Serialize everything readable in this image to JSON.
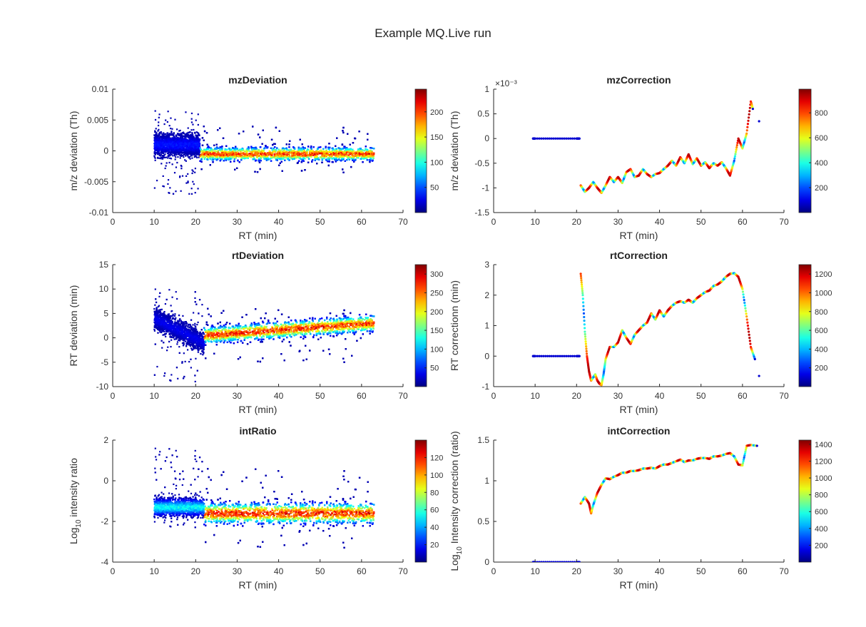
{
  "figure": {
    "title": "Example MQ.Live run"
  },
  "chart_data": [
    {
      "id": "mz-deviation",
      "type": "heatmap",
      "title": "mzDeviation",
      "xlabel": "RT (min)",
      "ylabel": "m/z deviation (Th)",
      "xlim": [
        0,
        70
      ],
      "ylim": [
        -0.01,
        0.01
      ],
      "xticks": [
        "0",
        "10",
        "20",
        "30",
        "40",
        "50",
        "60",
        "70"
      ],
      "yticks": [
        "-0.01",
        "-0.005",
        "0",
        "0.005",
        "0.01"
      ],
      "exponent_label": "",
      "colorbar": {
        "min": 0,
        "max": 245,
        "ticks": [
          50,
          100,
          150,
          200
        ],
        "tick_labels": [
          "50",
          "100",
          "150",
          "200"
        ]
      },
      "colormap": "jet",
      "density": [
        {
          "x": [
            10,
            21
          ],
          "center": 0.001,
          "spread": 0.004,
          "outlier_max": 0.0065,
          "outlier_min": -0.007,
          "peak": 40
        },
        {
          "x": [
            21,
            63
          ],
          "center": -0.0005,
          "spread": 0.0025,
          "outlier_max": 0.004,
          "outlier_min": -0.0035,
          "peak": 230
        }
      ]
    },
    {
      "id": "mz-correction",
      "type": "scatter",
      "title": "mzCorrection",
      "xlabel": "RT (min)",
      "ylabel": "m/z deviation (Th)",
      "xlim": [
        0,
        70
      ],
      "ylim": [
        -1.5,
        1
      ],
      "xticks": [
        "0",
        "10",
        "20",
        "30",
        "40",
        "50",
        "60",
        "70"
      ],
      "yticks": [
        "-1.5",
        "-1",
        "-0.5",
        "0",
        "0.5",
        "1"
      ],
      "exponent_label": "×10⁻³",
      "colorbar": {
        "min": 0,
        "max": 990,
        "ticks": [
          200,
          400,
          600,
          800
        ],
        "tick_labels": [
          "200",
          "400",
          "600",
          "800"
        ]
      },
      "colormap": "jet",
      "segments": [
        {
          "x": [
            9.5,
            10,
            15,
            20,
            20.7
          ],
          "y": [
            0,
            0,
            0,
            0,
            0
          ],
          "color_level": 0.1
        },
        {
          "x": [
            21,
            22,
            23,
            24,
            25,
            26,
            27,
            28,
            29,
            30,
            31,
            32,
            33,
            34,
            35,
            36,
            37,
            38,
            39,
            40,
            41,
            42,
            43,
            44,
            45,
            46,
            47,
            48,
            49,
            50,
            51,
            52,
            53,
            54,
            55,
            56,
            57,
            58,
            59,
            60,
            61,
            62,
            62.5
          ],
          "y": [
            -0.95,
            -1.08,
            -1.0,
            -0.88,
            -1.0,
            -1.1,
            -0.95,
            -0.78,
            -0.88,
            -0.78,
            -0.9,
            -0.68,
            -0.62,
            -0.78,
            -0.75,
            -0.62,
            -0.72,
            -0.78,
            -0.72,
            -0.7,
            -0.62,
            -0.55,
            -0.45,
            -0.55,
            -0.38,
            -0.5,
            -0.32,
            -0.52,
            -0.4,
            -0.55,
            -0.48,
            -0.6,
            -0.5,
            -0.55,
            -0.48,
            -0.6,
            -0.75,
            -0.45,
            0.0,
            -0.2,
            0.1,
            0.75,
            0.6
          ],
          "color_level": 0.5
        },
        {
          "x": [
            64
          ],
          "y": [
            0.35
          ],
          "color_level": 0.1
        }
      ]
    },
    {
      "id": "rt-deviation",
      "type": "heatmap",
      "title": "rtDeviation",
      "xlabel": "RT (min)",
      "ylabel": "RT deviation (min)",
      "xlim": [
        0,
        70
      ],
      "ylim": [
        -10,
        15
      ],
      "xticks": [
        "0",
        "10",
        "20",
        "30",
        "40",
        "50",
        "60",
        "70"
      ],
      "yticks": [
        "-10",
        "-5",
        "0",
        "5",
        "10",
        "15"
      ],
      "exponent_label": "",
      "colorbar": {
        "min": 0,
        "max": 325,
        "ticks": [
          50,
          100,
          150,
          200,
          250,
          300
        ],
        "tick_labels": [
          "50",
          "100",
          "150",
          "200",
          "250",
          "300"
        ]
      },
      "colormap": "jet",
      "density": [
        {
          "x": [
            10,
            22
          ],
          "center_start": 4,
          "center_end": -1,
          "spread": 5,
          "outlier_max": 10,
          "outlier_min": -9,
          "peak": 40
        },
        {
          "x": [
            22,
            63
          ],
          "center_start": 0.5,
          "center_end": 3,
          "spread": 4,
          "outlier_max": 6,
          "outlier_min": -5,
          "peak": 310
        }
      ]
    },
    {
      "id": "rt-correction",
      "type": "scatter",
      "title": "rtCorrection",
      "xlabel": "RT (min)",
      "ylabel": "RT correctionn (min)",
      "xlim": [
        0,
        70
      ],
      "ylim": [
        -1,
        3
      ],
      "xticks": [
        "0",
        "10",
        "20",
        "30",
        "40",
        "50",
        "60",
        "70"
      ],
      "yticks": [
        "-1",
        "0",
        "1",
        "2",
        "3"
      ],
      "exponent_label": "",
      "colorbar": {
        "min": 0,
        "max": 1300,
        "ticks": [
          200,
          400,
          600,
          800,
          1000,
          1200
        ],
        "tick_labels": [
          "200",
          "400",
          "600",
          "800",
          "1000",
          "1200"
        ]
      },
      "colormap": "jet",
      "segments": [
        {
          "x": [
            9.5,
            10,
            15,
            20,
            20.7
          ],
          "y": [
            0,
            0,
            0,
            0,
            0
          ],
          "color_level": 0.1
        },
        {
          "x": [
            21,
            21.5,
            22,
            22.5,
            23,
            23.5,
            24,
            24.5,
            25,
            25.5,
            26,
            26.5,
            27,
            28,
            29,
            30,
            31,
            32,
            33,
            34,
            35,
            36,
            37,
            38,
            39,
            40,
            41,
            42,
            43,
            44,
            45,
            46,
            47,
            48,
            49,
            50,
            51,
            52,
            53,
            54,
            55,
            56,
            57,
            58,
            59,
            60,
            61,
            62,
            63
          ],
          "y": [
            2.7,
            2.0,
            0.8,
            0.0,
            -0.5,
            -0.8,
            -0.7,
            -0.6,
            -0.8,
            -0.9,
            -0.95,
            -0.6,
            -0.1,
            0.3,
            0.3,
            0.45,
            0.85,
            0.6,
            0.4,
            0.7,
            0.85,
            1.0,
            1.1,
            1.4,
            1.2,
            1.5,
            1.3,
            1.5,
            1.65,
            1.75,
            1.8,
            1.75,
            1.85,
            1.75,
            1.9,
            2.0,
            2.1,
            2.15,
            2.3,
            2.35,
            2.45,
            2.6,
            2.7,
            2.72,
            2.6,
            2.2,
            1.3,
            0.3,
            -0.1
          ],
          "color_level": 0.5
        },
        {
          "x": [
            64
          ],
          "y": [
            -0.65
          ],
          "color_level": 0.1
        }
      ]
    },
    {
      "id": "int-ratio",
      "type": "heatmap",
      "title": "intRatio",
      "xlabel": "RT (min)",
      "ylabel": "Log10 intensity ratio",
      "ylabel_parts": {
        "before": "Log",
        "sub": "10",
        "after": " intensity ratio"
      },
      "xlim": [
        0,
        70
      ],
      "ylim": [
        -4,
        2
      ],
      "xticks": [
        "0",
        "10",
        "20",
        "30",
        "40",
        "50",
        "60",
        "70"
      ],
      "yticks": [
        "-4",
        "-2",
        "0",
        "2"
      ],
      "exponent_label": "",
      "colorbar": {
        "min": 0,
        "max": 140,
        "ticks": [
          20,
          40,
          60,
          80,
          100,
          120
        ],
        "tick_labels": [
          "20",
          "40",
          "60",
          "80",
          "100",
          "120"
        ]
      },
      "colormap": "jet",
      "density": [
        {
          "x": [
            10,
            22
          ],
          "center": -1.3,
          "spread": 1.0,
          "outlier_max": 1.6,
          "outlier_min": -2.3,
          "peak": 60
        },
        {
          "x": [
            22,
            63
          ],
          "center": -1.6,
          "spread": 1.2,
          "outlier_max": 0.6,
          "outlier_min": -3.3,
          "peak": 135
        }
      ]
    },
    {
      "id": "int-correction",
      "type": "scatter",
      "title": "intCorrection",
      "xlabel": "RT (min)",
      "ylabel": "Log10 Intensity correction (ratio)",
      "ylabel_parts": {
        "before": "Log",
        "sub": "10",
        "after": " Intensity correction (ratio)"
      },
      "xlim": [
        0,
        70
      ],
      "ylim": [
        0,
        1.5
      ],
      "xticks": [
        "0",
        "10",
        "20",
        "30",
        "40",
        "50",
        "60",
        "70"
      ],
      "yticks": [
        "0",
        "0.5",
        "1",
        "1.5"
      ],
      "exponent_label": "",
      "colorbar": {
        "min": 0,
        "max": 1450,
        "ticks": [
          200,
          400,
          600,
          800,
          1000,
          1200,
          1400
        ],
        "tick_labels": [
          "200",
          "400",
          "600",
          "800",
          "1000",
          "1200",
          "1400"
        ]
      },
      "colormap": "jet",
      "segments": [
        {
          "x": [
            9.5,
            10,
            15,
            20,
            20.7
          ],
          "y": [
            0,
            0,
            0,
            0,
            0
          ],
          "color_level": 0.1
        },
        {
          "x": [
            21,
            22,
            23,
            23.5,
            24,
            25,
            26,
            27,
            28,
            29,
            30,
            31,
            32,
            33,
            34,
            35,
            36,
            37,
            38,
            39,
            40,
            41,
            42,
            43,
            44,
            45,
            46,
            47,
            48,
            49,
            50,
            51,
            52,
            53,
            54,
            55,
            56,
            57,
            58,
            59,
            60,
            61,
            62,
            63.5
          ],
          "y": [
            0.72,
            0.8,
            0.72,
            0.6,
            0.7,
            0.85,
            0.95,
            1.03,
            1.02,
            1.05,
            1.07,
            1.1,
            1.1,
            1.12,
            1.12,
            1.13,
            1.15,
            1.15,
            1.16,
            1.15,
            1.18,
            1.2,
            1.2,
            1.22,
            1.24,
            1.26,
            1.23,
            1.25,
            1.25,
            1.27,
            1.28,
            1.28,
            1.27,
            1.3,
            1.3,
            1.31,
            1.33,
            1.34,
            1.3,
            1.2,
            1.19,
            1.43,
            1.44,
            1.43
          ],
          "color_level": 0.5
        }
      ]
    }
  ]
}
